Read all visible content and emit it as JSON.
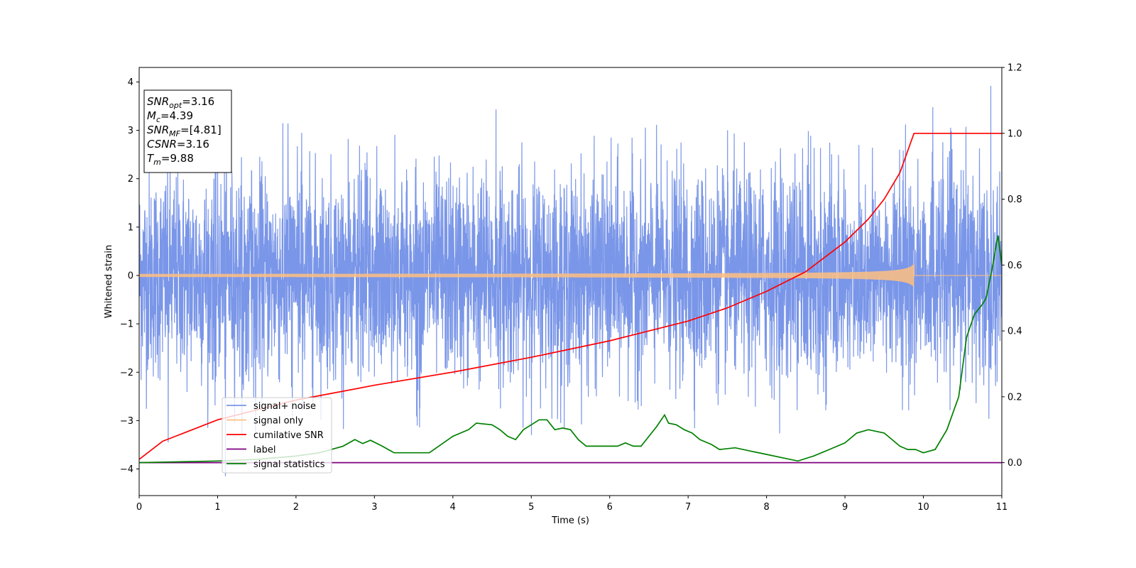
{
  "chart_data": {
    "type": "line",
    "xlabel": "Time (s)",
    "ylabel": "Whitened strain",
    "xlim": [
      0,
      11
    ],
    "ylim_left": [
      -4.55,
      4.3
    ],
    "ylim_right": [
      -0.1,
      1.2
    ],
    "x_ticks": [
      "0",
      "1",
      "2",
      "3",
      "4",
      "5",
      "6",
      "7",
      "8",
      "9",
      "10",
      "11"
    ],
    "y_ticks_left": [
      "−4",
      "−3",
      "−2",
      "−1",
      "0",
      "1",
      "2",
      "3",
      "4"
    ],
    "y_ticks_right": [
      "0.0",
      "0.2",
      "0.4",
      "0.6",
      "0.8",
      "1.0",
      "1.2"
    ],
    "grid": false,
    "legend_position": "lower-left",
    "series": [
      {
        "name": "signal+ noise",
        "axis": "left",
        "color": "#7a96e8",
        "style": "noise",
        "noise_std": 1.05,
        "extreme_peaks": [
          [
            1.1,
            -4.15
          ],
          [
            0.37,
            -3.45
          ],
          [
            4.55,
            3.43
          ],
          [
            10.86,
            3.92
          ],
          [
            10.12,
            3.48
          ]
        ]
      },
      {
        "name": "signal only",
        "axis": "left",
        "color": "#ffbf80",
        "style": "chirp",
        "end_time": 9.88,
        "amplitude_end": 0.28
      },
      {
        "name": "cumilative SNR",
        "axis": "right",
        "color": "#ff0000",
        "x": [
          0,
          0.3,
          1,
          2,
          3,
          4,
          5,
          6,
          7,
          7.5,
          8,
          8.5,
          9,
          9.3,
          9.5,
          9.7,
          9.88,
          9.9,
          11
        ],
        "y": [
          0.01,
          0.065,
          0.13,
          0.19,
          0.235,
          0.275,
          0.32,
          0.37,
          0.43,
          0.47,
          0.52,
          0.58,
          0.67,
          0.74,
          0.8,
          0.88,
          1.0,
          1.0,
          1.0
        ]
      },
      {
        "name": "label",
        "axis": "right",
        "color": "#800080",
        "x": [
          0,
          11
        ],
        "y": [
          0.0,
          0.0
        ]
      },
      {
        "name": "signal statistics",
        "axis": "right",
        "color": "#008000",
        "x": [
          0,
          1,
          1.5,
          2,
          2.3,
          2.6,
          2.75,
          2.85,
          2.95,
          3.1,
          3.25,
          3.3,
          3.7,
          4.0,
          4.2,
          4.3,
          4.5,
          4.6,
          4.7,
          4.8,
          4.9,
          5.0,
          5.1,
          5.15,
          5.2,
          5.3,
          5.4,
          5.5,
          5.6,
          5.7,
          5.8,
          5.9,
          6.0,
          6.1,
          6.2,
          6.3,
          6.4,
          6.5,
          6.6,
          6.7,
          6.75,
          6.85,
          6.95,
          7.05,
          7.15,
          7.3,
          7.4,
          7.6,
          7.8,
          8.0,
          8.2,
          8.4,
          8.6,
          8.8,
          9.0,
          9.15,
          9.3,
          9.5,
          9.6,
          9.7,
          9.8,
          9.9,
          10.0,
          10.15,
          10.3,
          10.45,
          10.55,
          10.65,
          10.75,
          10.8,
          10.87,
          10.95,
          11.0
        ],
        "y": [
          0.0,
          0.005,
          0.01,
          0.02,
          0.03,
          0.05,
          0.07,
          0.058,
          0.068,
          0.05,
          0.03,
          0.03,
          0.03,
          0.08,
          0.1,
          0.12,
          0.115,
          0.1,
          0.08,
          0.07,
          0.1,
          0.115,
          0.13,
          0.13,
          0.13,
          0.1,
          0.105,
          0.1,
          0.07,
          0.05,
          0.05,
          0.05,
          0.05,
          0.05,
          0.06,
          0.05,
          0.05,
          0.08,
          0.11,
          0.145,
          0.12,
          0.115,
          0.1,
          0.09,
          0.07,
          0.055,
          0.04,
          0.045,
          0.035,
          0.025,
          0.015,
          0.005,
          0.02,
          0.04,
          0.06,
          0.09,
          0.1,
          0.09,
          0.07,
          0.05,
          0.04,
          0.04,
          0.03,
          0.04,
          0.1,
          0.2,
          0.38,
          0.45,
          0.48,
          0.5,
          0.58,
          0.69,
          0.6
        ]
      }
    ],
    "annotation": {
      "lines": [
        {
          "label_main": "SNR",
          "label_sub": "opt",
          "value": "=3.16"
        },
        {
          "label_main": "M",
          "label_sub": "c",
          "value": "=4.39"
        },
        {
          "label_main": "SNR",
          "label_sub": "MF",
          "value": "=[4.81]"
        },
        {
          "label_main": "CSNR",
          "label_sub": "",
          "value": "=3.16"
        },
        {
          "label_main": "T",
          "label_sub": "m",
          "value": "=9.88"
        }
      ]
    }
  }
}
